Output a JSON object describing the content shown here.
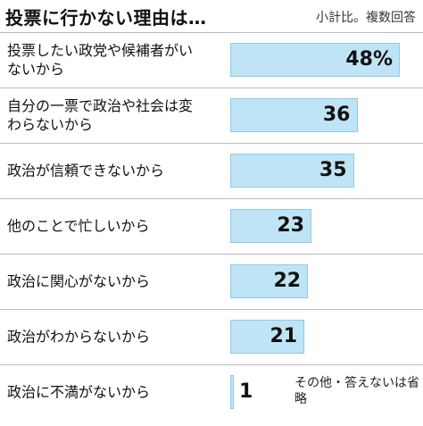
{
  "chart_data": {
    "type": "bar",
    "orientation": "horizontal",
    "title": "投票に行かない理由は…",
    "subtitle": "小計比。複数回答",
    "annotation": "その他・答えないは省略",
    "categories": [
      "投票したい政党や候補者がいないから",
      "自分の一票で政治や社会は変わらないから",
      "政治が信頼できないから",
      "他のことで忙しいから",
      "政治に関心がないから",
      "政治がわからないから",
      "政治に不満がないから"
    ],
    "values": [
      48,
      36,
      35,
      23,
      22,
      21,
      1
    ],
    "value_labels": [
      "48%",
      "36",
      "35",
      "23",
      "22",
      "21",
      "1"
    ],
    "color": "#bfe4f5"
  }
}
